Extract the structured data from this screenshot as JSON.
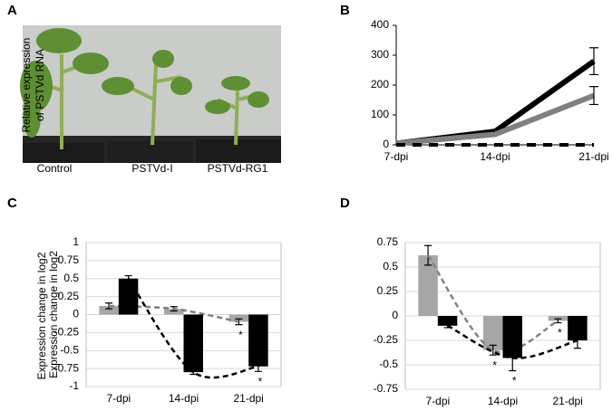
{
  "panel_labels": [
    "A",
    "B",
    "C",
    "D"
  ],
  "photo": {
    "labels": [
      "Control",
      "PSTVd-I",
      "PSTVd-RG1"
    ]
  },
  "chart_data": [
    {
      "type": "line",
      "ylabel": [
        "Relative expression",
        "of PSTVd RNA"
      ],
      "categories": [
        "7-dpi",
        "14-dpi",
        "21-dpi"
      ],
      "ylim": [
        0,
        400
      ],
      "yticks": [
        0,
        100,
        200,
        300,
        400
      ],
      "grid": false,
      "series": [
        {
          "color": "#000000",
          "values": [
            5,
            45,
            280
          ],
          "errors": [
            null,
            null,
            45
          ],
          "dash": false
        },
        {
          "color": "#808080",
          "values": [
            5,
            35,
            165
          ],
          "errors": [
            null,
            null,
            30
          ],
          "dash": false
        },
        {
          "color": "#000000",
          "values": [
            0,
            0,
            0
          ],
          "errors": [
            null,
            null,
            null
          ],
          "dash": true
        }
      ]
    },
    {
      "type": "bar",
      "ylabel": [
        "Expression change in log2"
      ],
      "categories": [
        "7-dpi",
        "14-dpi",
        "21-dpi"
      ],
      "ylim": [
        -1,
        1
      ],
      "yticks": [
        1,
        0.75,
        0.5,
        0.25,
        0,
        -0.25,
        -0.5,
        -0.75,
        -1
      ],
      "grid": true,
      "trendline": true,
      "series": [
        {
          "color": "#a6a6a6",
          "values": [
            0.12,
            0.08,
            -0.1
          ],
          "errors": [
            0.04,
            0.03,
            0.04
          ],
          "significance": [
            null,
            null,
            "*"
          ]
        },
        {
          "color": "#000000",
          "values": [
            0.5,
            -0.8,
            -0.72
          ],
          "errors": [
            0.04,
            0.03,
            0.07
          ],
          "significance": [
            null,
            null,
            "*"
          ]
        }
      ]
    },
    {
      "type": "bar",
      "ylabel": [
        "Expression change in log2"
      ],
      "categories": [
        "7-dpi",
        "14-dpi",
        "21-dpi"
      ],
      "ylim": [
        -0.75,
        0.75
      ],
      "yticks": [
        0.75,
        0.5,
        0.25,
        0,
        -0.25,
        -0.5,
        -0.75
      ],
      "grid": true,
      "trendline": true,
      "series": [
        {
          "color": "#a6a6a6",
          "values": [
            0.62,
            -0.35,
            -0.05
          ],
          "errors": [
            0.1,
            0.05,
            0.02
          ],
          "significance": [
            null,
            "*",
            "*"
          ]
        },
        {
          "color": "#000000",
          "values": [
            -0.1,
            -0.43,
            -0.25
          ],
          "errors": [
            0.02,
            0.13,
            0.08
          ],
          "significance": [
            null,
            "*",
            null
          ]
        }
      ]
    }
  ]
}
